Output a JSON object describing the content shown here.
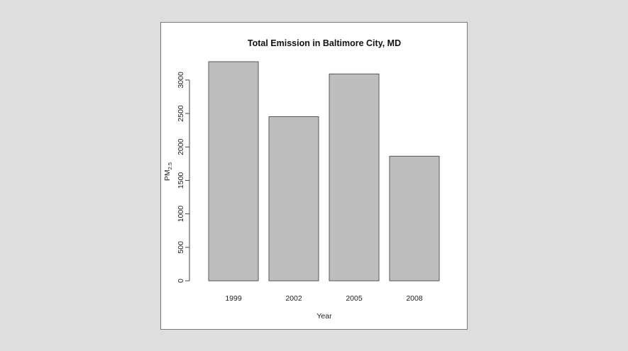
{
  "chart_data": {
    "type": "bar",
    "title": "Total Emission in Baltimore City, MD",
    "xlabel": "Year",
    "ylabel": {
      "base": "PM",
      "subscript": "2.5"
    },
    "categories": [
      "1999",
      "2002",
      "2005",
      "2008"
    ],
    "values": [
      3274,
      2453,
      3091,
      1862
    ],
    "ylim": [
      0,
      3274
    ],
    "yticks": [
      0,
      500,
      1000,
      1500,
      2000,
      2500,
      3000
    ],
    "bar_fill": "#bebebe",
    "bar_stroke": "#555555",
    "grid": false
  }
}
